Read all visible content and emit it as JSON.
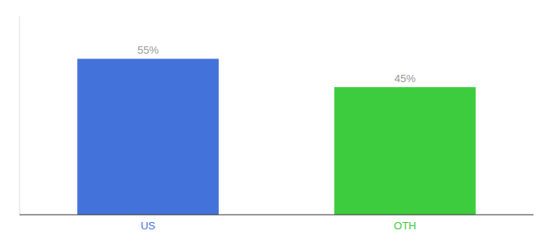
{
  "chart_data": {
    "type": "bar",
    "categories": [
      "US",
      "OTH"
    ],
    "values": [
      55,
      45
    ],
    "value_labels": [
      "55%",
      "45%"
    ],
    "colors": [
      "#4472db",
      "#3dcc3d"
    ],
    "ylim": [
      0,
      70
    ],
    "data_labels": true,
    "tick_labels": "x"
  }
}
